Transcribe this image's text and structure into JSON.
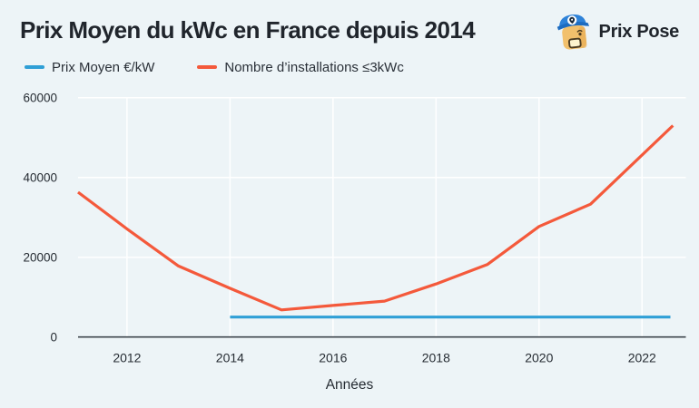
{
  "brand": {
    "name": "Prix Pose",
    "icon": "prix-pose-mascot-icon"
  },
  "chart_data": {
    "type": "line",
    "title": "Prix Moyen du kWc en France depuis 2014",
    "xlabel": "Années",
    "ylabel": "",
    "xlim": [
      2011.05,
      2022.85
    ],
    "ylim": [
      0,
      60000
    ],
    "xticks": [
      2012,
      2014,
      2016,
      2018,
      2020,
      2022
    ],
    "yticks": [
      0,
      20000,
      40000,
      60000
    ],
    "grid": true,
    "grid_color": "#ffffff",
    "axis_color": "#3f464d",
    "background_color": "#edf4f7",
    "legend_position": "top-left",
    "series": [
      {
        "name": "Prix Moyen €/kW",
        "color": "#2f9fd6",
        "points": [
          [
            2014,
            5000
          ],
          [
            2022.55,
            5000
          ]
        ]
      },
      {
        "name": "Nombre d’installations ≤3kWc",
        "color": "#f4593b",
        "points": [
          [
            2011.05,
            36300
          ],
          [
            2012,
            27100
          ],
          [
            2013,
            17800
          ],
          [
            2014,
            12200
          ],
          [
            2015,
            6800
          ],
          [
            2016,
            7900
          ],
          [
            2017,
            9000
          ],
          [
            2018,
            13300
          ],
          [
            2019,
            18200
          ],
          [
            2020,
            27700
          ],
          [
            2021,
            33300
          ],
          [
            2022.6,
            53000
          ]
        ]
      }
    ]
  }
}
